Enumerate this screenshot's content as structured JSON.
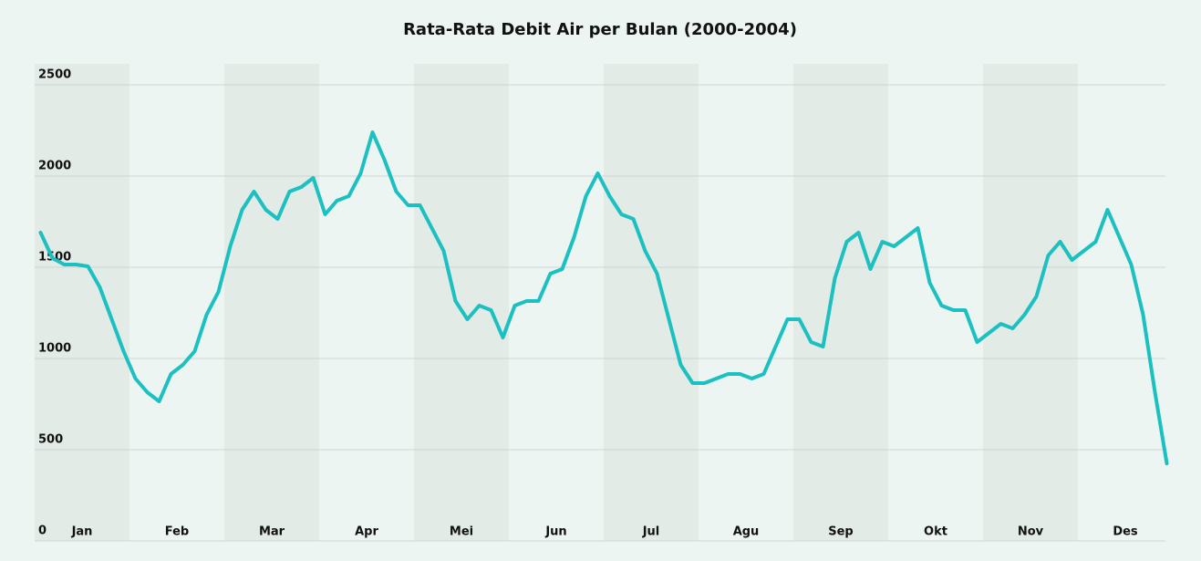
{
  "chart_data": {
    "type": "line",
    "title": "Rata-Rata Debit Air per Bulan (2000-2004)",
    "categories": [
      null,
      null,
      null,
      null,
      "Jan",
      null,
      null,
      null,
      null,
      null,
      null,
      null,
      "Feb",
      null,
      null,
      null,
      null,
      null,
      null,
      null,
      "Mar",
      null,
      null,
      null,
      null,
      null,
      null,
      null,
      "Apr",
      null,
      null,
      null,
      null,
      null,
      null,
      null,
      "Mei",
      null,
      null,
      null,
      null,
      null,
      null,
      null,
      "Jun",
      null,
      null,
      null,
      null,
      null,
      null,
      null,
      "Jul",
      null,
      null,
      null,
      null,
      null,
      null,
      null,
      "Agu",
      null,
      null,
      null,
      null,
      null,
      null,
      null,
      "Sep",
      null,
      null,
      null,
      null,
      null,
      null,
      null,
      "Okt",
      null,
      null,
      null,
      null,
      null,
      null,
      null,
      "Nov",
      null,
      null,
      null,
      null,
      null,
      null,
      null,
      "Des",
      null,
      null,
      null
    ],
    "series": [
      {
        "name": "Debit Air",
        "color": "#1cc0c0",
        "values": [
          1690,
          1550,
          1515,
          1515,
          1505,
          1390,
          1215,
          1040,
          890,
          815,
          765,
          915,
          965,
          1040,
          1240,
          1365,
          1615,
          1815,
          1915,
          1815,
          1765,
          1915,
          1940,
          1990,
          1790,
          1865,
          1890,
          2015,
          2240,
          2090,
          1915,
          1840,
          1840,
          1715,
          1590,
          1315,
          1215,
          1290,
          1265,
          1115,
          1290,
          1315,
          1315,
          1465,
          1490,
          1665,
          1890,
          2015,
          1890,
          1790,
          1765,
          1590,
          1465,
          1215,
          965,
          865,
          865,
          890,
          915,
          915,
          890,
          915,
          1065,
          1215,
          1215,
          1090,
          1065,
          1440,
          1640,
          1690,
          1490,
          1640,
          1615,
          1665,
          1715,
          1415,
          1290,
          1265,
          1265,
          1090,
          1140,
          1190,
          1165,
          1240,
          1340,
          1565,
          1640,
          1540,
          1590,
          1640,
          1815,
          1665,
          1515,
          1240,
          815,
          425
        ]
      }
    ],
    "ylim": [
      0,
      2500
    ],
    "yticks": [
      0,
      500,
      1000,
      1500,
      2000,
      2500
    ],
    "grid": true
  }
}
